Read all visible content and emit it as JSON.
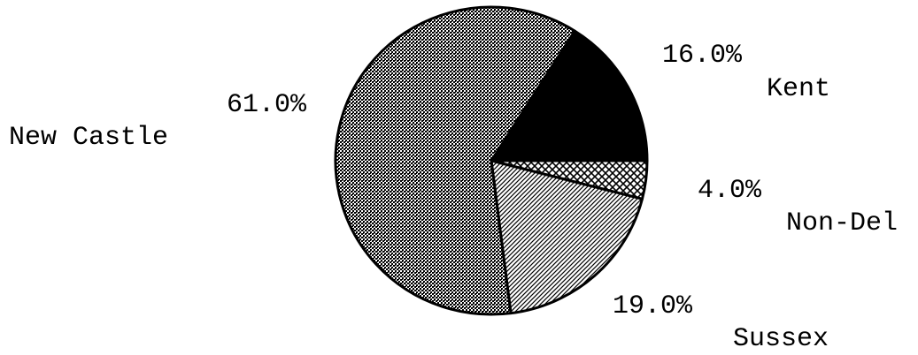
{
  "chart_data": {
    "type": "pie",
    "categories": [
      "Kent",
      "Non-Del",
      "Sussex",
      "New Castle"
    ],
    "values": [
      16,
      4,
      19,
      61
    ],
    "value_labels": [
      "16.0%",
      "4.0%",
      "19.0%",
      "61.0%"
    ],
    "patterns": [
      "solid",
      "crosshatch",
      "diagonal",
      "dots"
    ],
    "color": "#000000"
  }
}
